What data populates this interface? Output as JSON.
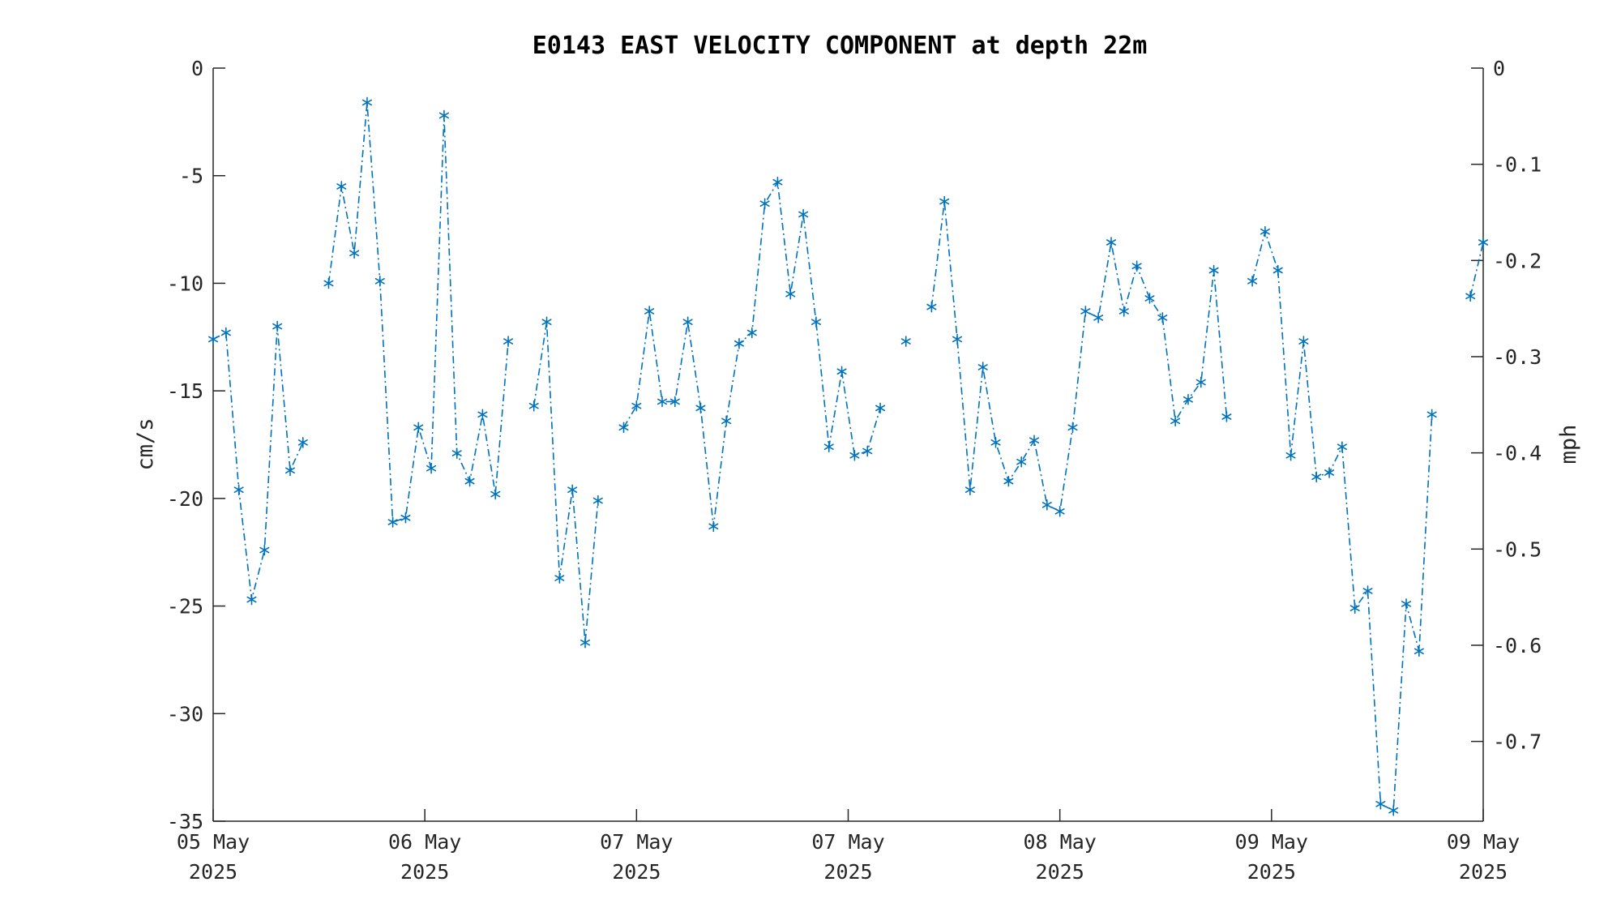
{
  "chart_data": {
    "type": "line",
    "title": "E0143 EAST VELOCITY COMPONENT at depth 22m",
    "xlabel": "",
    "ylabel": "cm/s",
    "ylabel_right": "mph",
    "ylim": [
      -35,
      0
    ],
    "yticks": [
      "0",
      "-5",
      "-10",
      "-15",
      "-20",
      "-25",
      "-30",
      "-35"
    ],
    "yticks_right": [
      "0",
      "-0.1",
      "-0.2",
      "-0.3",
      "-0.4",
      "-0.5",
      "-0.6",
      "-0.7"
    ],
    "xlim": [
      0,
      99
    ],
    "xticks": [
      {
        "at": 0,
        "line1": "05 May",
        "line2": "2025"
      },
      {
        "at": 16.5,
        "line1": "06 May",
        "line2": "2025"
      },
      {
        "at": 33,
        "line1": "07 May",
        "line2": "2025"
      },
      {
        "at": 49.5,
        "line1": "07 May",
        "line2": "2025"
      },
      {
        "at": 66,
        "line1": "08 May",
        "line2": "2025"
      },
      {
        "at": 82.5,
        "line1": "09 May",
        "line2": "2025"
      },
      {
        "at": 99,
        "line1": "09 May",
        "line2": "2025"
      }
    ],
    "grid": false,
    "legend": "none",
    "color": "#0072BD",
    "marker": "asterisk",
    "line_style": "dash-dot",
    "series": [
      {
        "x": [
          0,
          1,
          2,
          3,
          4,
          5,
          6,
          7,
          8,
          9,
          10,
          11,
          12,
          13,
          14,
          15,
          16,
          17,
          18,
          19,
          20,
          21,
          22,
          23,
          24,
          25,
          26,
          27,
          28,
          29,
          30,
          31,
          32,
          33,
          34,
          35,
          36,
          37,
          38,
          39,
          40,
          41,
          42,
          43,
          44,
          45,
          46,
          47,
          48,
          49,
          50,
          51,
          52,
          53,
          54,
          55,
          56,
          57,
          58,
          59,
          60,
          61,
          62,
          63,
          64,
          65,
          66,
          67,
          68,
          69,
          70,
          71,
          72,
          73,
          74,
          75,
          76,
          77,
          78,
          79,
          80,
          81,
          82,
          83,
          84,
          85,
          86,
          87,
          88,
          89,
          90,
          91,
          92,
          93,
          94,
          95,
          96,
          97,
          98,
          99
        ],
        "values": [
          -12.6,
          -12.3,
          -19.6,
          -24.7,
          -22.4,
          -12.0,
          -18.7,
          -17.4,
          null,
          -10.0,
          -5.5,
          -8.6,
          -1.6,
          -9.9,
          -21.1,
          -20.9,
          -16.7,
          -18.6,
          -2.2,
          -17.9,
          -19.2,
          -16.1,
          -19.8,
          -12.7,
          null,
          -15.7,
          -11.8,
          -23.7,
          -19.6,
          -26.7,
          -20.1,
          null,
          -16.7,
          -15.7,
          -11.3,
          -15.5,
          -15.5,
          -11.8,
          -15.8,
          -21.3,
          -16.4,
          -12.8,
          -12.3,
          -6.3,
          -5.3,
          -10.5,
          -6.8,
          -11.8,
          -17.6,
          -14.1,
          -18.0,
          -17.8,
          -15.8,
          null,
          -12.7,
          null,
          -11.1,
          -6.2,
          -12.6,
          -19.6,
          -13.9,
          -17.4,
          -19.2,
          -18.3,
          -17.3,
          -20.3,
          -20.6,
          -16.7,
          -11.3,
          -11.6,
          -8.1,
          -11.3,
          -9.2,
          -10.7,
          -11.6,
          -16.4,
          -15.4,
          -14.6,
          -9.4,
          -16.2,
          null,
          -9.9,
          -7.6,
          -9.4,
          -18.0,
          -12.7,
          -19.0,
          -18.8,
          -17.6,
          -25.1,
          -24.3,
          -34.2,
          -34.5,
          -24.9,
          -27.1,
          -16.1,
          null,
          null,
          -10.6,
          -8.1
        ]
      }
    ]
  }
}
